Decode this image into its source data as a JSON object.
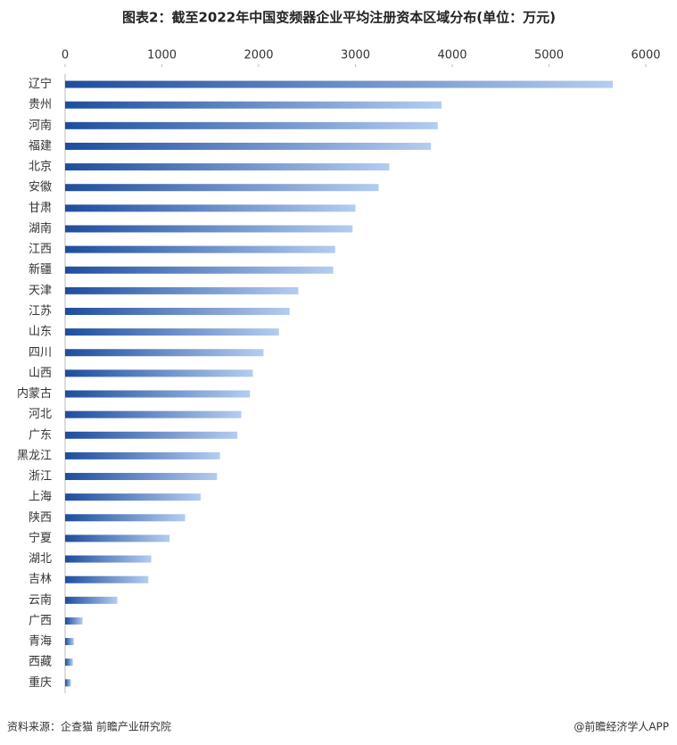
{
  "chart_data": {
    "type": "bar",
    "orientation": "horizontal",
    "title": "图表2：截至2022年中国变频器企业平均注册资本区域分布(单位：万元)",
    "categories": [
      "辽宁",
      "贵州",
      "河南",
      "福建",
      "北京",
      "安徽",
      "甘肃",
      "湖南",
      "江西",
      "新疆",
      "天津",
      "江苏",
      "山东",
      "四川",
      "山西",
      "内蒙古",
      "河北",
      "广东",
      "黑龙江",
      "浙江",
      "上海",
      "陕西",
      "宁夏",
      "湖北",
      "吉林",
      "云南",
      "广西",
      "青海",
      "西藏",
      "重庆"
    ],
    "values": [
      5660,
      3890,
      3850,
      3780,
      3350,
      3240,
      3000,
      2970,
      2790,
      2770,
      2410,
      2320,
      2210,
      2050,
      1940,
      1910,
      1820,
      1780,
      1600,
      1570,
      1400,
      1240,
      1080,
      890,
      860,
      540,
      180,
      90,
      80,
      60
    ],
    "color": "#2a5db0",
    "xlim": [
      0,
      6000
    ],
    "xticks": [
      0,
      1000,
      2000,
      3000,
      4000,
      5000,
      6000
    ],
    "source": "资料来源：企查猫 前瞻产业研究院",
    "credit": "@前瞻经济学人APP"
  }
}
